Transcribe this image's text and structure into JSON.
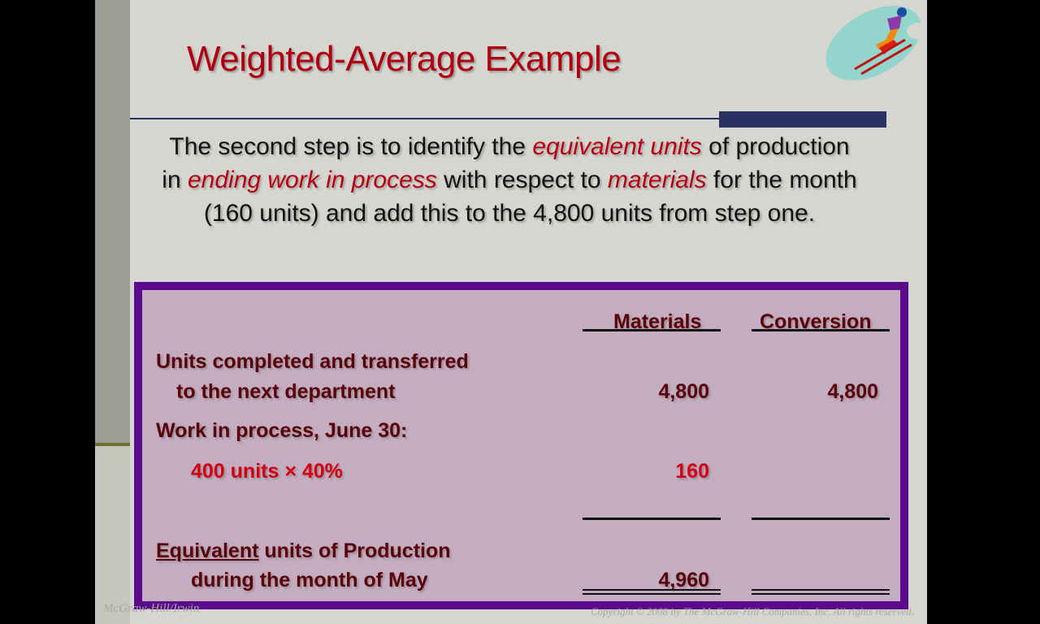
{
  "slide": {
    "title": "Weighted-Average Example",
    "body": {
      "t1": "The second step is to identify the ",
      "e1": "equivalent units",
      "t2": " of production in ",
      "e2": "ending work in process",
      "t3": " with respect to ",
      "e3": "materials",
      "t4": " for the month (160 units) and add this to the 4,800 units from step one."
    },
    "table": {
      "headers": [
        "Materials",
        "Conversion"
      ],
      "row1": {
        "label1": "Units completed and transferred",
        "label2": "to the next department",
        "materials": "4,800",
        "conversion": "4,800"
      },
      "row2": {
        "label": "Work in process, June 30:"
      },
      "row3": {
        "label": "400 units × 40%",
        "materials": "160"
      },
      "total": {
        "label_underlined": "Equivalent",
        "label_rest": " units of Production",
        "label2": "during the month of May",
        "materials": "4,960"
      }
    },
    "footer": {
      "left": "McGraw-Hill/Irwin",
      "right": "Copyright © 2008 by The McGraw-Hill Companies, Inc. All rights reserved."
    },
    "colors": {
      "title": "#b00010",
      "box_border": "#5b0a8c",
      "box_fill": "#c4adc1",
      "highlight": "#d40010"
    },
    "logo_icon": "ski-jumper-icon"
  }
}
